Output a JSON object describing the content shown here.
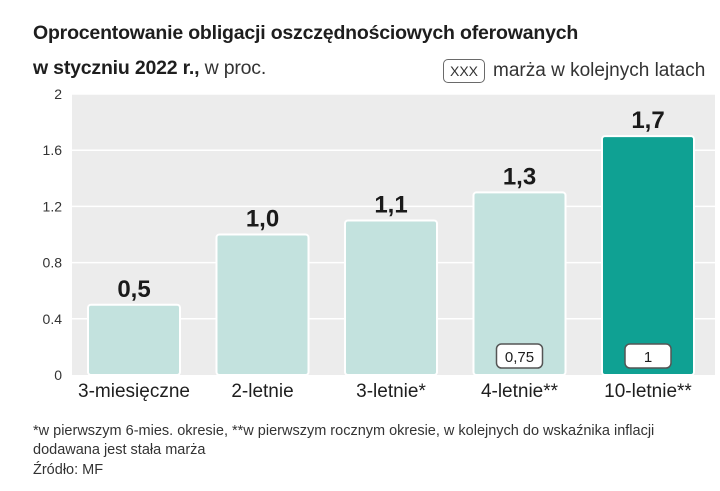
{
  "header": {
    "title": "Oprocentowanie obligacji oszczędnościowych oferowanych",
    "subtitle_bold": "w styczniu 2022 r.,",
    "subtitle_unit": "w proc."
  },
  "legend": {
    "box_label": "XXX",
    "text": "marża w kolejnych latach"
  },
  "colors": {
    "bar_light": "#c3e2de",
    "bar_highlight": "#0fa193",
    "panel": "#ececec",
    "grid": "#ffffff",
    "bar_border": "#ffffff"
  },
  "chart_data": {
    "type": "bar",
    "categories": [
      "3-miesięczne",
      "2-letnie",
      "3-letnie*",
      "4-letnie**",
      "10-letnie**"
    ],
    "values": [
      0.5,
      1.0,
      1.1,
      1.3,
      1.7
    ],
    "value_labels": [
      "0,5",
      "1,0",
      "1,1",
      "1,3",
      "1,7"
    ],
    "margins": [
      null,
      null,
      null,
      "0,75",
      "1"
    ],
    "highlight_index": 4,
    "ylim": [
      0,
      2
    ],
    "yticks": [
      0,
      0.4,
      0.8,
      1.2,
      1.6,
      2
    ],
    "ytick_labels": [
      "0",
      "0.4",
      "0.8",
      "1.2",
      "1.6",
      "2"
    ],
    "grid": true
  },
  "footer": {
    "footnote": "*w pierwszym 6-mies. okresie, **w pierwszym rocznym okresie, w kolejnych do wskaźnika inflacji dodawana jest stała marża",
    "source": "Źródło: MF"
  }
}
